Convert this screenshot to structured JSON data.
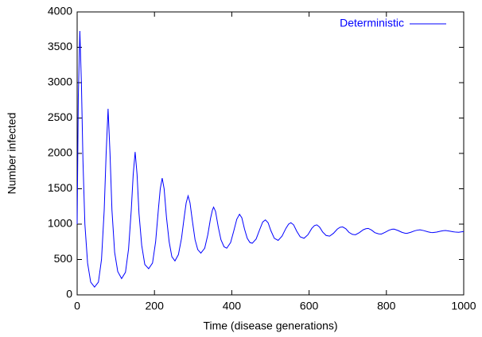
{
  "chart_data": {
    "type": "line",
    "xlabel": "Time (disease generations)",
    "ylabel": "Number infected",
    "xlim": [
      0,
      1000
    ],
    "xticks": [
      0,
      200,
      400,
      600,
      800,
      1000
    ],
    "ylim": [
      0,
      4000
    ],
    "yticks": [
      0,
      500,
      1000,
      1500,
      2000,
      2500,
      3000,
      3500,
      4000
    ],
    "legend": "upper right",
    "x": [
      0,
      3,
      7,
      11,
      15,
      20,
      27,
      35,
      45,
      55,
      63,
      70,
      75,
      80,
      85,
      90,
      97,
      105,
      115,
      125,
      133,
      140,
      145,
      150,
      155,
      160,
      167,
      175,
      185,
      195,
      203,
      210,
      215,
      220,
      225,
      231,
      238,
      245,
      253,
      262,
      270,
      277,
      282,
      287,
      292,
      298,
      305,
      312,
      320,
      330,
      338,
      345,
      350,
      353,
      358,
      365,
      372,
      380,
      387,
      397,
      405,
      413,
      420,
      426,
      433,
      440,
      447,
      453,
      463,
      472,
      480,
      487,
      494,
      501,
      510,
      520,
      530,
      540,
      547,
      553,
      560,
      568,
      577,
      587,
      597,
      607,
      614,
      620,
      627,
      635,
      644,
      653,
      663,
      673,
      680,
      687,
      695,
      703,
      712,
      720,
      730,
      740,
      747,
      753,
      762,
      770,
      780,
      787,
      797,
      807,
      815,
      820,
      830,
      840,
      848,
      853,
      863,
      873,
      880,
      887,
      897,
      907,
      915,
      920,
      930,
      940,
      947,
      953,
      963,
      973,
      980,
      987,
      995,
      1000
    ],
    "series": [
      {
        "name": "Deterministic",
        "color": "#0000ff",
        "values": [
          1000,
          2800,
          3730,
          3000,
          1900,
          1000,
          450,
          180,
          110,
          180,
          500,
          1200,
          2000,
          2630,
          2000,
          1200,
          600,
          330,
          230,
          320,
          650,
          1200,
          1700,
          2020,
          1700,
          1150,
          700,
          430,
          370,
          450,
          750,
          1200,
          1500,
          1650,
          1500,
          1100,
          750,
          540,
          480,
          570,
          800,
          1100,
          1300,
          1400,
          1300,
          1050,
          780,
          640,
          590,
          660,
          850,
          1080,
          1200,
          1240,
          1180,
          960,
          780,
          680,
          660,
          740,
          900,
          1070,
          1140,
          1090,
          930,
          800,
          740,
          730,
          790,
          920,
          1030,
          1060,
          1020,
          910,
          800,
          770,
          830,
          940,
          1000,
          1020,
          990,
          900,
          820,
          800,
          850,
          940,
          980,
          990,
          960,
          890,
          840,
          830,
          870,
          930,
          955,
          960,
          935,
          885,
          855,
          850,
          880,
          920,
          935,
          940,
          915,
          880,
          862,
          860,
          885,
          915,
          928,
          930,
          910,
          885,
          872,
          870,
          885,
          905,
          915,
          920,
          908,
          892,
          882,
          880,
          888,
          900,
          907,
          910,
          902,
          892,
          887,
          885,
          892,
          895
        ]
      }
    ]
  }
}
